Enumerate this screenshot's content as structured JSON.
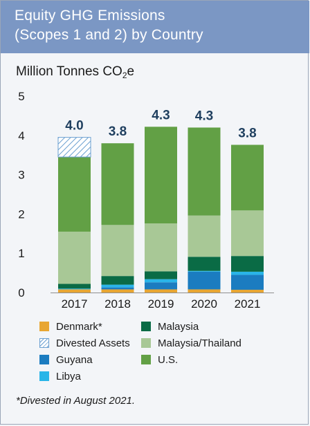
{
  "header": {
    "title_line1": "Equity GHG Emissions",
    "title_line2": "(Scopes 1 and 2) by Country"
  },
  "units": {
    "prefix": "Million Tonnes CO",
    "subscript": "2",
    "suffix": "e"
  },
  "footnote": "*Divested in August 2021.",
  "chart_data": {
    "type": "bar",
    "stacked": true,
    "categories": [
      "2017",
      "2018",
      "2019",
      "2020",
      "2021"
    ],
    "ylim": [
      0,
      5
    ],
    "yticks": [
      0,
      1,
      2,
      3,
      4,
      5
    ],
    "totals": [
      "4.0",
      "3.8",
      "4.3",
      "4.3",
      "3.8"
    ],
    "series": [
      {
        "name": "Denmark*",
        "color": "#e8a632",
        "values": [
          0.08,
          0.08,
          0.08,
          0.08,
          0.07
        ]
      },
      {
        "name": "Guyana",
        "color": "#1b7cc0",
        "values": [
          0.0,
          0.05,
          0.18,
          0.45,
          0.38
        ]
      },
      {
        "name": "Libya",
        "color": "#29b5e8",
        "values": [
          0.02,
          0.07,
          0.08,
          0.02,
          0.08
        ]
      },
      {
        "name": "Malaysia",
        "color": "#0a6b45",
        "values": [
          0.12,
          0.22,
          0.2,
          0.36,
          0.4
        ]
      },
      {
        "name": "Malaysia/Thailand",
        "color": "#a8c896",
        "values": [
          1.33,
          1.3,
          1.22,
          1.05,
          1.16
        ]
      },
      {
        "name": "U.S.",
        "color": "#62a045",
        "values": [
          1.9,
          2.08,
          2.46,
          2.24,
          1.67
        ]
      },
      {
        "name": "Divested Assets",
        "color": "#6a9fd0",
        "hatched": true,
        "values": [
          0.5,
          0,
          0,
          0,
          0
        ]
      }
    ]
  },
  "legend_order": [
    {
      "label": "Denmark*",
      "color": "#e8a632",
      "hatched": false
    },
    {
      "label": "Divested Assets",
      "color": "#6a9fd0",
      "hatched": true
    },
    {
      "label": "Guyana",
      "color": "#1b7cc0",
      "hatched": false
    },
    {
      "label": "Libya",
      "color": "#29b5e8",
      "hatched": false
    },
    {
      "label": "Malaysia",
      "color": "#0a6b45",
      "hatched": false
    },
    {
      "label": "Malaysia/Thailand",
      "color": "#a8c896",
      "hatched": false
    },
    {
      "label": "U.S.",
      "color": "#62a045",
      "hatched": false
    }
  ]
}
